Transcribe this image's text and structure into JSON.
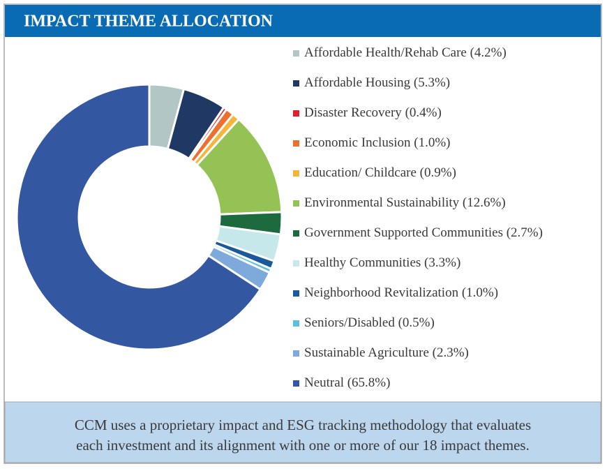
{
  "chart_data": {
    "type": "donut",
    "title": "IMPACT THEME ALLOCATION",
    "categories": [
      "Affordable Health/Rehab Care",
      "Affordable Housing",
      "Disaster Recovery",
      "Economic Inclusion",
      "Education/ Childcare",
      "Environmental Sustainability",
      "Government Supported Communities",
      "Healthy Communities",
      "Neighborhood Revitalization",
      "Seniors/Disabled",
      "Sustainable Agriculture",
      "Neutral"
    ],
    "values": [
      4.2,
      5.3,
      0.4,
      1.0,
      0.9,
      12.6,
      2.7,
      3.3,
      1.0,
      0.5,
      2.3,
      65.8
    ],
    "value_labels": [
      "(4.2%)",
      "(5.3%)",
      "(0.4%)",
      "(1.0%)",
      "(0.9%)",
      "(12.6%)",
      "(2.7%)",
      "(3.3%)",
      "(1.0%)",
      "(0.5%)",
      "(2.3%)",
      "(65.8%)"
    ],
    "colors": [
      "#b3c6c6",
      "#1f3864",
      "#e3202a",
      "#ed7031",
      "#f5b43a",
      "#94c255",
      "#1d6a3e",
      "#c7e8ea",
      "#1a5a9a",
      "#5cc0dc",
      "#7eaadb",
      "#3457a1"
    ],
    "legend": "right"
  },
  "footnote": [
    "CCM uses a proprietary impact and ESG tracking methodology that evaluates",
    "each investment and its alignment with one or more of our 18 impact themes."
  ]
}
